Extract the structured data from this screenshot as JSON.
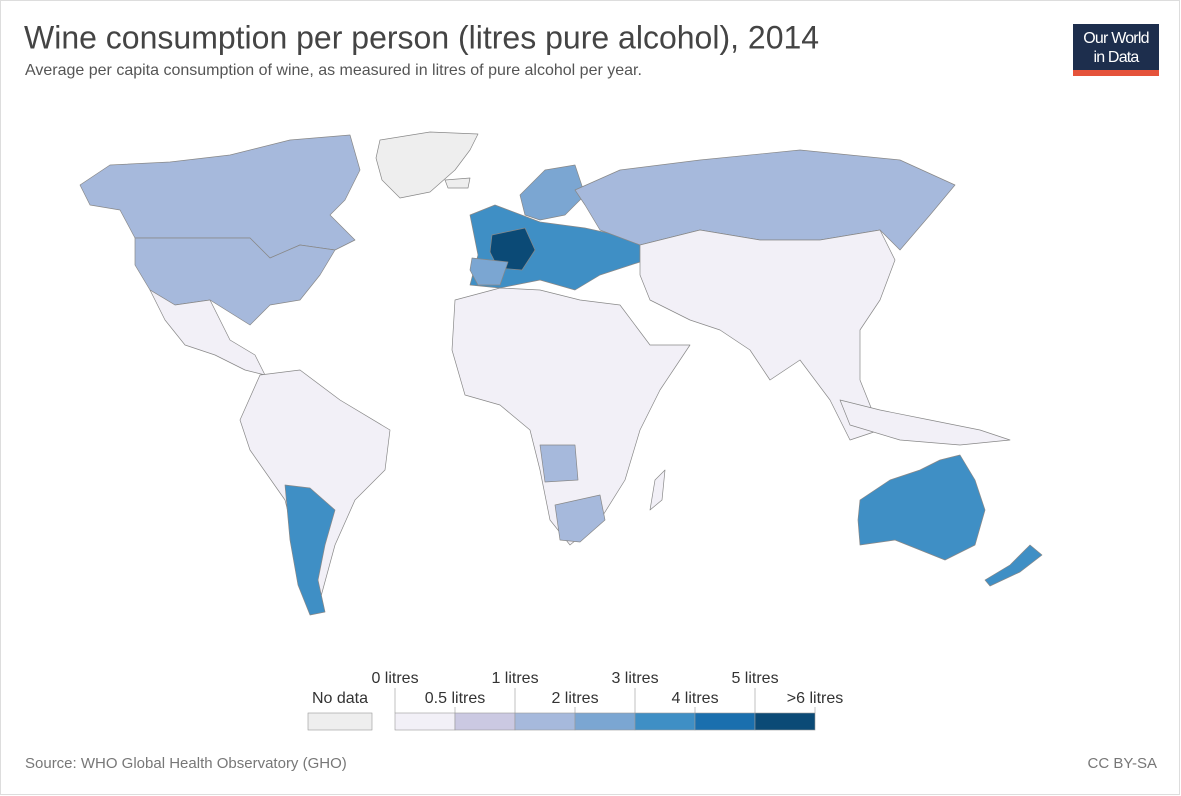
{
  "header": {
    "title": "Wine consumption per person (litres pure alcohol), 2014",
    "subtitle": "Average per capita consumption of wine, as measured in litres of pure alcohol per year.",
    "logo": [
      "Our World",
      "in Data"
    ]
  },
  "legend": {
    "no_data": "No data",
    "no_data_color": "#eeeeee",
    "colors": [
      "#f2f0f7",
      "#cbc9e2",
      "#a6b9dc",
      "#7ba6d2",
      "#3f8fc5",
      "#1a6fae",
      "#0b4a76"
    ],
    "labels": [
      "0 litres",
      "0.5 litres",
      "1 litres",
      "2 litres",
      "3 litres",
      "4 litres",
      "5 litres",
      ">6 litres"
    ]
  },
  "footer": {
    "source": "Source: WHO Global Health Observatory (GHO)",
    "license": "CC BY-SA"
  }
}
